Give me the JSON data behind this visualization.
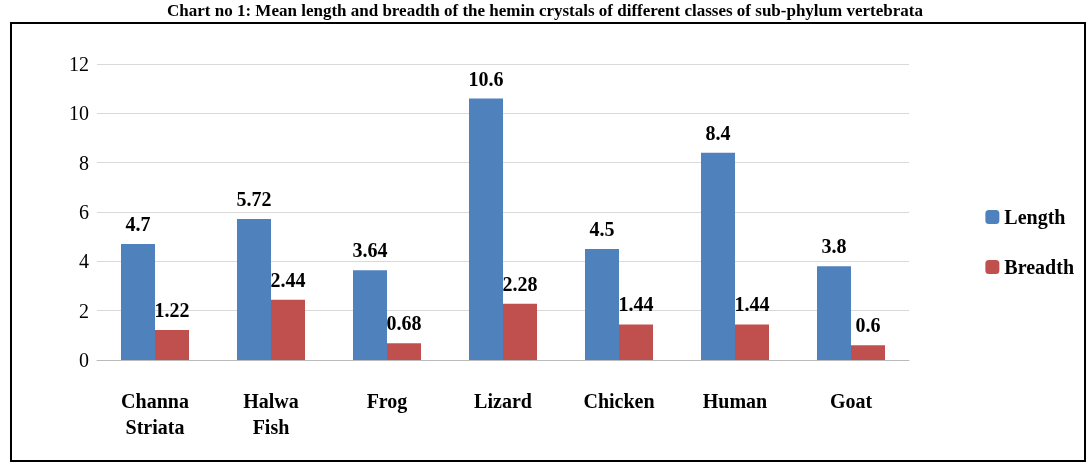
{
  "chart_data": {
    "type": "bar",
    "title": "Chart no 1: Mean length and breadth of the hemin crystals of different classes of sub-phylum vertebrata",
    "categories": [
      "Channa\nStriata",
      "Halwa\nFish",
      "Frog",
      "Lizard",
      "Chicken",
      "Human",
      "Goat"
    ],
    "series": [
      {
        "name": "Length",
        "color": "#4f81bd",
        "values": [
          4.7,
          5.72,
          3.64,
          10.6,
          4.5,
          8.4,
          3.8
        ]
      },
      {
        "name": "Breadth",
        "color": "#c0504d",
        "values": [
          1.22,
          2.44,
          0.68,
          2.28,
          1.44,
          1.44,
          0.6
        ]
      }
    ],
    "ylim": [
      0,
      12
    ],
    "yticks": [
      0,
      2,
      4,
      6,
      8,
      10,
      12
    ],
    "grid": "y",
    "legend": "right",
    "data_labels": true
  }
}
